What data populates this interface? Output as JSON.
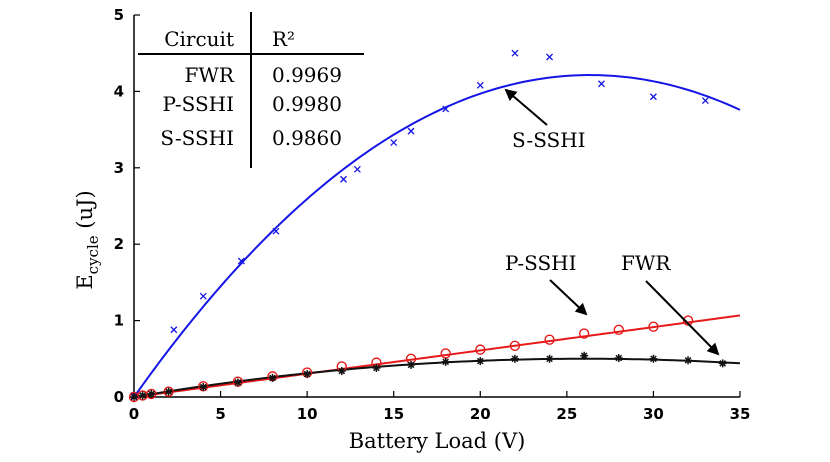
{
  "chart_data": {
    "type": "scatter",
    "xlabel": "Battery Load (V)",
    "ylabel_main": "E",
    "ylabel_sub": "cycle",
    "ylabel_unit": "(uJ)",
    "xlim": [
      0,
      35
    ],
    "ylim": [
      0,
      5
    ],
    "xticks": [
      0,
      5,
      10,
      15,
      20,
      25,
      30,
      35
    ],
    "yticks": [
      0,
      1,
      2,
      3,
      4,
      5
    ],
    "grid": false,
    "series": [
      {
        "name": "S-SSHI",
        "marker": "x",
        "color": "#1515e6",
        "x": [
          0,
          2.3,
          4,
          6.2,
          8.2,
          12.1,
          12.9,
          15,
          16,
          18,
          20,
          22,
          24,
          27,
          30,
          33
        ],
        "y": [
          0.02,
          0.88,
          1.32,
          1.78,
          2.17,
          2.85,
          2.98,
          3.33,
          3.48,
          3.77,
          4.08,
          4.5,
          4.45,
          4.1,
          3.93,
          3.88
        ],
        "fit": {
          "degree": 2,
          "a": -0.006075,
          "b": 0.32,
          "c": 0.0,
          "x_end": 35
        }
      },
      {
        "name": "P-SSHI",
        "marker": "o",
        "color": "#e61a1a",
        "x": [
          0,
          0.5,
          1,
          2,
          4,
          6,
          8,
          10,
          12,
          14,
          16,
          18,
          20,
          22,
          24,
          26,
          28,
          30,
          32
        ],
        "y": [
          0.0,
          0.02,
          0.04,
          0.07,
          0.14,
          0.2,
          0.27,
          0.32,
          0.4,
          0.45,
          0.5,
          0.57,
          0.62,
          0.67,
          0.75,
          0.83,
          0.88,
          0.92,
          1.0
        ],
        "fit": {
          "degree": 1,
          "a": 0,
          "b": 0.0305,
          "c": 0.0,
          "x_end": 35
        }
      },
      {
        "name": "FWR",
        "marker": "*",
        "color": "#111111",
        "x": [
          0,
          0.5,
          1,
          2,
          4,
          6,
          8,
          10,
          12,
          14,
          16,
          18,
          20,
          22,
          24,
          26,
          28,
          30,
          32,
          34
        ],
        "y": [
          0.0,
          0.02,
          0.04,
          0.07,
          0.13,
          0.19,
          0.25,
          0.3,
          0.34,
          0.38,
          0.42,
          0.46,
          0.47,
          0.5,
          0.5,
          0.54,
          0.51,
          0.5,
          0.48,
          0.44
        ],
        "fit": {
          "degree": 2,
          "a": -0.00074,
          "b": 0.0385,
          "c": 0.0,
          "x_end": 35
        }
      }
    ],
    "r2_table": {
      "header_circuit": "Circuit",
      "header_r2": "R²",
      "rows": [
        {
          "circuit": "FWR",
          "r2": "0.9969"
        },
        {
          "circuit": "P-SSHI",
          "r2": "0.9980"
        },
        {
          "circuit": "S-SSHI",
          "r2": "0.9860"
        }
      ]
    },
    "annotations": [
      {
        "text": "S-SSHI",
        "color": "#000000"
      },
      {
        "text": "P-SSHI",
        "color": "#000000"
      },
      {
        "text": "FWR",
        "color": "#000000"
      }
    ]
  }
}
